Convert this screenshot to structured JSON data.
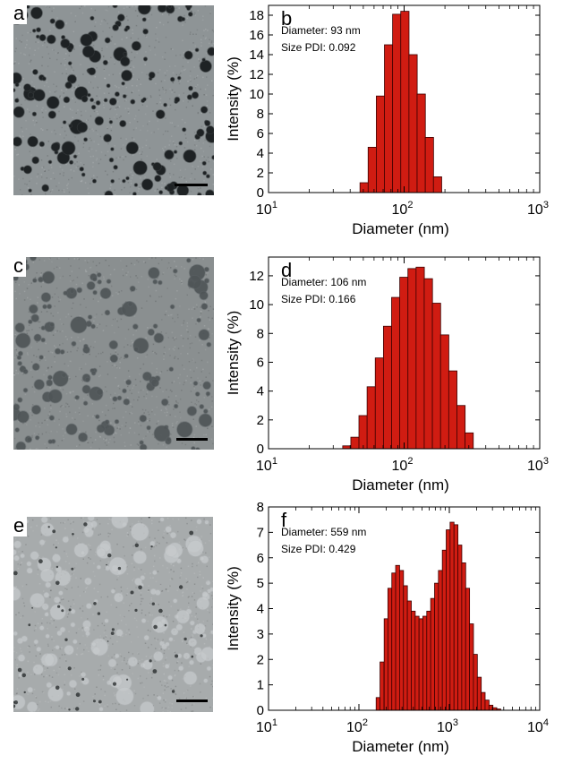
{
  "panels": [
    {
      "image_letter": "a",
      "plot_letter": "b",
      "image_tone": "#8e9496",
      "annotation": [
        "Diameter: 93 nm",
        "Size PDI: 0.092"
      ]
    },
    {
      "image_letter": "c",
      "plot_letter": "d",
      "image_tone": "#8a8f90",
      "annotation": [
        "Diameter: 106 nm",
        "Size PDI: 0.166"
      ]
    },
    {
      "image_letter": "e",
      "plot_letter": "f",
      "image_tone": "#a7abac",
      "annotation": [
        "Diameter: 559 nm",
        "Size PDI: 0.429"
      ]
    }
  ],
  "colors": {
    "bar_fill": "#d01c12",
    "bar_edge": "#3a0000"
  },
  "chart_data": [
    {
      "type": "bar",
      "xlabel": "Diameter (nm)",
      "ylabel": "Intensity (%)",
      "xscale": "log",
      "xlim": [
        10,
        1000
      ],
      "ylim": [
        0,
        19
      ],
      "yticks": [
        0,
        2,
        4,
        6,
        8,
        10,
        12,
        14,
        16,
        18
      ],
      "xtick_labels": [
        {
          "base": "10",
          "exp": "1"
        },
        {
          "base": "10",
          "exp": "2"
        },
        {
          "base": "10",
          "exp": "3"
        }
      ],
      "log_bin_width": 0.061,
      "x": [
        50.7,
        58.2,
        66.9,
        76.8,
        88.2,
        101.3,
        116.4,
        133.7,
        153.6,
        176.4
      ],
      "values": [
        1.0,
        4.6,
        9.8,
        15.0,
        18.1,
        18.4,
        14.0,
        10.0,
        5.6,
        1.6
      ]
    },
    {
      "type": "bar",
      "xlabel": "Diameter (nm)",
      "ylabel": "Intensity (%)",
      "xscale": "log",
      "xlim": [
        10,
        1000
      ],
      "ylim": [
        0,
        13.3
      ],
      "yticks": [
        0,
        2,
        4,
        6,
        8,
        10,
        12
      ],
      "xtick_labels": [
        {
          "base": "10",
          "exp": "1"
        },
        {
          "base": "10",
          "exp": "2"
        },
        {
          "base": "10",
          "exp": "3"
        }
      ],
      "log_bin_width": 0.061,
      "x": [
        37.8,
        43.4,
        49.8,
        57.2,
        65.7,
        75.5,
        86.7,
        99.6,
        114.4,
        131.4,
        150.9,
        173.3,
        199.1,
        228.7,
        262.7,
        301.7
      ],
      "values": [
        0.2,
        0.8,
        2.3,
        4.3,
        6.3,
        8.5,
        10.5,
        11.9,
        12.5,
        12.6,
        11.8,
        10.1,
        7.9,
        5.4,
        3.0,
        1.1
      ]
    },
    {
      "type": "bar",
      "xlabel": "Diameter (nm)",
      "ylabel": "Intensity (%)",
      "xscale": "log",
      "xlim": [
        10,
        10000
      ],
      "ylim": [
        0,
        8
      ],
      "yticks": [
        0,
        1,
        2,
        3,
        4,
        5,
        6,
        7,
        8
      ],
      "xtick_labels": [
        {
          "base": "10",
          "exp": "1"
        },
        {
          "base": "10",
          "exp": "2"
        },
        {
          "base": "10",
          "exp": "3"
        },
        {
          "base": "10",
          "exp": "4"
        }
      ],
      "log_bin_width": 0.0438,
      "x": [
        163,
        180,
        200,
        220,
        243,
        268,
        296,
        327,
        361,
        399,
        440,
        486,
        536,
        592,
        654,
        722,
        797,
        880,
        971,
        1072,
        1184,
        1307,
        1443,
        1593,
        1759,
        1942,
        2144,
        2367,
        2614,
        2886,
        3186,
        3518
      ],
      "values": [
        0.5,
        1.9,
        3.6,
        4.8,
        5.4,
        5.7,
        5.5,
        4.9,
        4.3,
        3.9,
        3.7,
        3.6,
        3.7,
        3.9,
        4.4,
        5.0,
        5.5,
        6.3,
        7.1,
        7.4,
        7.3,
        6.5,
        5.8,
        4.8,
        3.4,
        2.2,
        1.3,
        0.7,
        0.4,
        0.2,
        0.1,
        0.05
      ]
    }
  ]
}
